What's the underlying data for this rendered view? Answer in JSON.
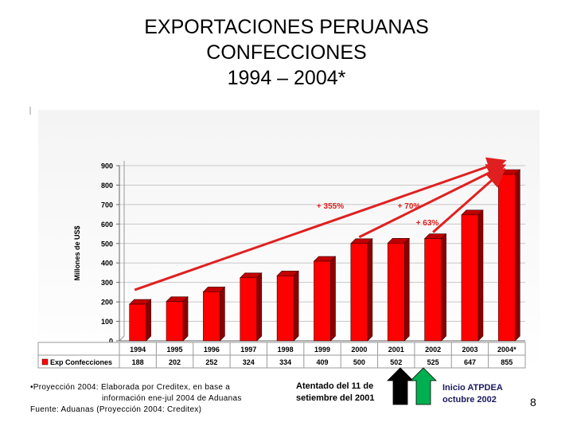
{
  "title_lines": [
    "EXPORTACIONES PERUANAS",
    "CONFECCIONES",
    "1994 – 2004*"
  ],
  "chart_data": {
    "type": "bar",
    "title": "EXPORTACIONES PERUANAS CONFECCIONES 1994 – 2004*",
    "categories": [
      "1994",
      "1995",
      "1996",
      "1997",
      "1998",
      "1999",
      "2000",
      "2001",
      "2002",
      "2003",
      "2004*"
    ],
    "series": [
      {
        "name": "Exp Confecciones",
        "values": [
          188,
          202,
          252,
          324,
          334,
          409,
          500,
          502,
          525,
          647,
          855
        ]
      }
    ],
    "value_labels": [
      "188",
      "202",
      "252",
      "324",
      "334",
      "409",
      "500",
      "502",
      "525",
      "647",
      "855"
    ],
    "ylabel": "Millones de US$",
    "xlabel": "",
    "ylim": [
      0,
      900
    ],
    "yticks": [
      0,
      100,
      200,
      300,
      400,
      500,
      600,
      700,
      800,
      900
    ],
    "grid": true,
    "legend": "bottom-left table",
    "bar_color": "#ff0000",
    "annotations": [
      {
        "text": "+ 355%",
        "from": "1994",
        "to": "2004*"
      },
      {
        "text": "+ 70%",
        "from": "2000",
        "to": "2004*"
      },
      {
        "text": "+ 63%",
        "from": "2002",
        "to": "2004*"
      }
    ]
  },
  "notes": {
    "line1": "•Proyección 2004: Elaborada por Creditex, en base a",
    "line2": "información ene-jul 2004 de Aduanas",
    "line3": "Fuente: Aduanas (Proyección 2004: Creditex)"
  },
  "event_attack": {
    "line1": "Atentado del 11 de",
    "line2": "setiembre del 2001",
    "arrow_color": "#000000"
  },
  "event_atpdea": {
    "line1": "Inicio ATPDEA",
    "line2": "octubre 2002",
    "arrow_color": "#00b050",
    "text_color": "#1a1a60"
  },
  "page_number": "8"
}
